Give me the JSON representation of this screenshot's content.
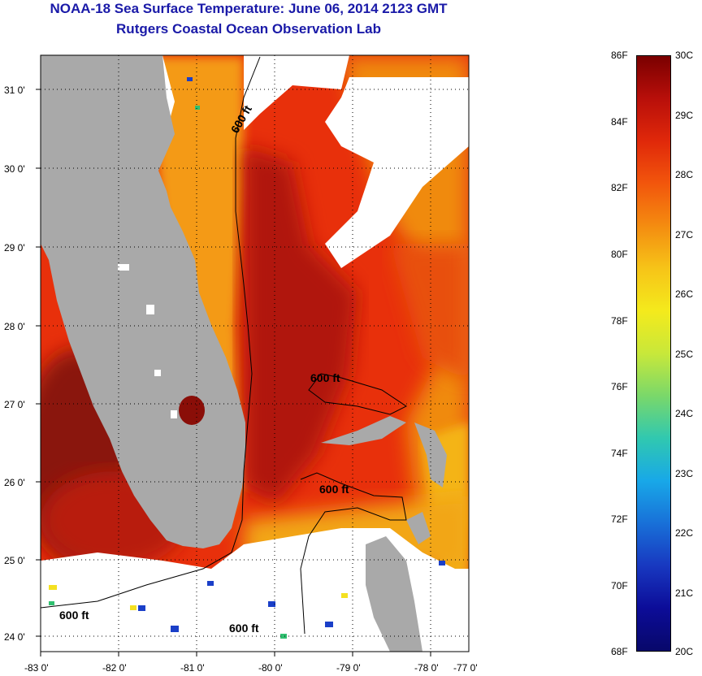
{
  "title": {
    "line1": "NOAA-18 Sea Surface Temperature:  June 06, 2014 2123 GMT",
    "line2": "Rutgers Coastal Ocean Observation Lab"
  },
  "map": {
    "lat_labels": [
      "31 0'",
      "30 0'",
      "29 0'",
      "28 0'",
      "27 0'",
      "26 0'",
      "25 0'",
      "24 0'"
    ],
    "lon_labels": [
      "-83 0'",
      "-82 0'",
      "-81 0'",
      "-80 0'",
      "-79 0'",
      "-78 0'",
      "-77 0'"
    ],
    "contour_label": "600 ft",
    "colors": {
      "land": "#a9a9a9",
      "cloud": "#ffffff",
      "warm_dark": "#7a0a08",
      "warm": "#d8270b",
      "orange": "#f29a10",
      "yellow": "#f7d81a",
      "cool": "#1a3fc8"
    }
  },
  "colorbar": {
    "fahrenheit_labels": [
      "86F",
      "84F",
      "82F",
      "80F",
      "78F",
      "76F",
      "74F",
      "72F",
      "70F",
      "68F"
    ],
    "celsius_labels": [
      "30C",
      "29C",
      "28C",
      "27C",
      "26C",
      "25C",
      "24C",
      "23C",
      "22C",
      "21C",
      "20C"
    ],
    "range_celsius": [
      20,
      30
    ],
    "range_fahrenheit": [
      68,
      86
    ],
    "gradient": [
      "#7a0000",
      "#b80f0a",
      "#e0280a",
      "#f2560c",
      "#f48c10",
      "#f6c418",
      "#f4ea1c",
      "#c8e83a",
      "#7ad86a",
      "#30c8b0",
      "#18a8e8",
      "#1870d8",
      "#1838c0",
      "#0c0c98",
      "#08086a"
    ]
  }
}
